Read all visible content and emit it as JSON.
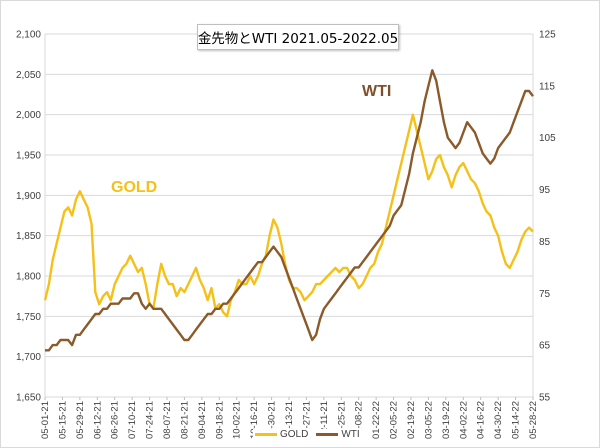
{
  "chart_data": {
    "type": "line",
    "title": "金先物とWTI 2021.05-2022.05",
    "y_left": {
      "min": 1650,
      "max": 2100,
      "step": 50,
      "tick_labels": [
        "1,650",
        "1,700",
        "1,750",
        "1,800",
        "1,850",
        "1,900",
        "1,950",
        "2,000",
        "2,050",
        "2,100"
      ]
    },
    "y_right": {
      "min": 55,
      "max": 125,
      "step": 10,
      "tick_labels": [
        "55",
        "65",
        "75",
        "85",
        "95",
        "105",
        "115",
        "125"
      ]
    },
    "x_tick_labels": [
      "05-01-21",
      "05-15-21",
      "05-29-21",
      "06-12-21",
      "06-26-21",
      "07-10-21",
      "07-24-21",
      "08-07-21",
      "08-21-21",
      "09-04-21",
      "09-18-21",
      "10-02-21",
      "10-16-21",
      "10-30-21",
      "11-13-21",
      "11-27-21",
      "12-11-21",
      "12-25-21",
      "01-08-22",
      "01-22-22",
      "02-05-22",
      "02-19-22",
      "03-05-22",
      "03-19-22",
      "04-02-22",
      "04-16-22",
      "04-30-22",
      "05-14-22",
      "05-28-22"
    ],
    "grid": {
      "horizontal": true,
      "vertical": false
    },
    "legend_position": "bottom-center",
    "series": [
      {
        "name": "GOLD",
        "axis": "left",
        "color": "#f5c017",
        "values": [
          1770,
          1790,
          1820,
          1840,
          1860,
          1880,
          1885,
          1875,
          1895,
          1905,
          1895,
          1885,
          1865,
          1780,
          1765,
          1775,
          1780,
          1770,
          1790,
          1800,
          1810,
          1815,
          1825,
          1815,
          1805,
          1810,
          1790,
          1765,
          1760,
          1790,
          1815,
          1800,
          1790,
          1790,
          1775,
          1785,
          1780,
          1790,
          1800,
          1810,
          1795,
          1785,
          1770,
          1785,
          1760,
          1765,
          1755,
          1750,
          1770,
          1780,
          1795,
          1790,
          1790,
          1800,
          1790,
          1800,
          1815,
          1825,
          1850,
          1870,
          1860,
          1840,
          1815,
          1795,
          1785,
          1785,
          1780,
          1770,
          1775,
          1780,
          1790,
          1790,
          1795,
          1800,
          1805,
          1810,
          1805,
          1810,
          1810,
          1800,
          1795,
          1785,
          1790,
          1800,
          1810,
          1815,
          1830,
          1840,
          1860,
          1880,
          1900,
          1920,
          1940,
          1960,
          1980,
          2000,
          1980,
          1960,
          1940,
          1920,
          1930,
          1945,
          1950,
          1935,
          1925,
          1910,
          1925,
          1935,
          1940,
          1930,
          1920,
          1915,
          1905,
          1890,
          1880,
          1875,
          1860,
          1850,
          1830,
          1815,
          1810,
          1820,
          1830,
          1845,
          1855,
          1860,
          1855
        ]
      },
      {
        "name": "WTI",
        "axis": "right",
        "color": "#8b5a2b",
        "values": [
          64,
          64,
          65,
          65,
          66,
          66,
          66,
          65,
          67,
          67,
          68,
          69,
          70,
          71,
          71,
          72,
          72,
          73,
          73,
          73,
          74,
          74,
          74,
          75,
          75,
          73,
          72,
          73,
          72,
          72,
          72,
          71,
          70,
          69,
          68,
          67,
          66,
          66,
          67,
          68,
          69,
          70,
          71,
          71,
          72,
          72,
          73,
          73,
          74,
          75,
          76,
          77,
          78,
          79,
          80,
          81,
          81,
          82,
          83,
          84,
          83,
          82,
          80,
          78,
          76,
          74,
          72,
          70,
          68,
          66,
          67,
          70,
          72,
          73,
          74,
          75,
          76,
          77,
          78,
          79,
          80,
          80,
          81,
          82,
          83,
          84,
          85,
          86,
          87,
          88,
          90,
          91,
          92,
          95,
          98,
          102,
          105,
          108,
          112,
          115,
          118,
          116,
          112,
          108,
          105,
          104,
          103,
          104,
          106,
          108,
          107,
          106,
          104,
          102,
          101,
          100,
          101,
          103,
          104,
          105,
          106,
          108,
          110,
          112,
          114,
          114,
          113
        ]
      }
    ]
  }
}
